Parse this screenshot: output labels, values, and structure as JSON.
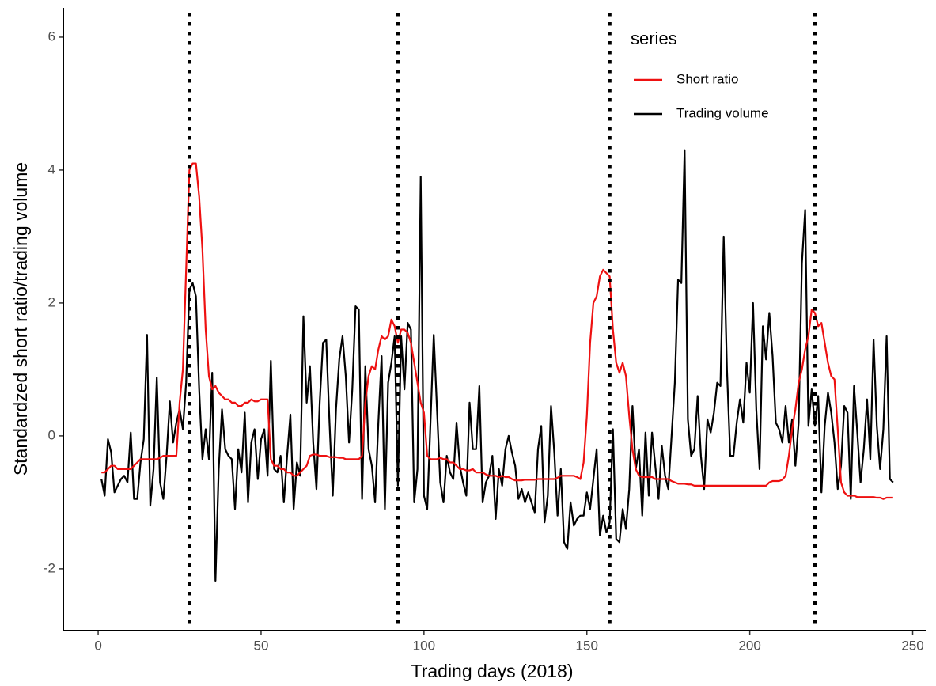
{
  "chart_data": {
    "type": "line",
    "xlabel": "Trading days (2018)",
    "ylabel": "Standardzed short ratio/trading volume",
    "legend_title": "series",
    "legend": "top-right",
    "xlim": [
      -10.7,
      254
    ],
    "ylim": [
      -2.93,
      6.44
    ],
    "xticks": [
      0,
      50,
      100,
      150,
      200,
      250
    ],
    "yticks": [
      -2,
      0,
      2,
      4,
      6
    ],
    "vlines": [
      28,
      92,
      157,
      220
    ],
    "x": [
      1,
      2,
      3,
      4,
      5,
      6,
      7,
      8,
      9,
      10,
      11,
      12,
      13,
      14,
      15,
      16,
      17,
      18,
      19,
      20,
      21,
      22,
      23,
      24,
      25,
      26,
      27,
      28,
      29,
      30,
      31,
      32,
      33,
      34,
      35,
      36,
      37,
      38,
      39,
      40,
      41,
      42,
      43,
      44,
      45,
      46,
      47,
      48,
      49,
      50,
      51,
      52,
      53,
      54,
      55,
      56,
      57,
      58,
      59,
      60,
      61,
      62,
      63,
      64,
      65,
      66,
      67,
      68,
      69,
      70,
      71,
      72,
      73,
      74,
      75,
      76,
      77,
      78,
      79,
      80,
      81,
      82,
      83,
      84,
      85,
      86,
      87,
      88,
      89,
      90,
      91,
      92,
      93,
      94,
      95,
      96,
      97,
      98,
      99,
      100,
      101,
      102,
      103,
      104,
      105,
      106,
      107,
      108,
      109,
      110,
      111,
      112,
      113,
      114,
      115,
      116,
      117,
      118,
      119,
      120,
      121,
      122,
      123,
      124,
      125,
      126,
      127,
      128,
      129,
      130,
      131,
      132,
      133,
      134,
      135,
      136,
      137,
      138,
      139,
      140,
      141,
      142,
      143,
      144,
      145,
      146,
      147,
      148,
      149,
      150,
      151,
      152,
      153,
      154,
      155,
      156,
      157,
      158,
      159,
      160,
      161,
      162,
      163,
      164,
      165,
      166,
      167,
      168,
      169,
      170,
      171,
      172,
      173,
      174,
      175,
      176,
      177,
      178,
      179,
      180,
      181,
      182,
      183,
      184,
      185,
      186,
      187,
      188,
      189,
      190,
      191,
      192,
      193,
      194,
      195,
      196,
      197,
      198,
      199,
      200,
      201,
      202,
      203,
      204,
      205,
      206,
      207,
      208,
      209,
      210,
      211,
      212,
      213,
      214,
      215,
      216,
      217,
      218,
      219,
      220,
      221,
      222,
      223,
      224,
      225,
      226,
      227,
      228,
      229,
      230,
      231,
      232,
      233,
      234,
      235,
      236,
      237,
      238,
      239,
      240,
      241,
      242,
      243,
      244
    ],
    "series": [
      {
        "name": "Short ratio",
        "color": "#ee1111",
        "values": [
          -0.55,
          -0.55,
          -0.5,
          -0.45,
          -0.45,
          -0.5,
          -0.5,
          -0.5,
          -0.5,
          -0.5,
          -0.45,
          -0.4,
          -0.35,
          -0.35,
          -0.35,
          -0.35,
          -0.35,
          -0.35,
          -0.33,
          -0.3,
          -0.3,
          -0.3,
          -0.3,
          -0.3,
          0.5,
          1.0,
          2.5,
          4.0,
          4.1,
          4.1,
          3.6,
          2.8,
          1.6,
          0.9,
          0.7,
          0.75,
          0.65,
          0.6,
          0.55,
          0.55,
          0.5,
          0.5,
          0.45,
          0.45,
          0.5,
          0.5,
          0.55,
          0.52,
          0.52,
          0.55,
          0.55,
          0.55,
          -0.35,
          -0.45,
          -0.45,
          -0.5,
          -0.5,
          -0.55,
          -0.55,
          -0.6,
          -0.6,
          -0.55,
          -0.5,
          -0.45,
          -0.3,
          -0.28,
          -0.28,
          -0.3,
          -0.3,
          -0.3,
          -0.32,
          -0.32,
          -0.32,
          -0.33,
          -0.33,
          -0.35,
          -0.35,
          -0.35,
          -0.35,
          -0.35,
          -0.3,
          0.5,
          0.9,
          1.05,
          1.0,
          1.3,
          1.5,
          1.45,
          1.5,
          1.75,
          1.65,
          1.4,
          1.6,
          1.6,
          1.55,
          1.4,
          1.1,
          0.8,
          0.5,
          0.35,
          -0.3,
          -0.35,
          -0.35,
          -0.35,
          -0.33,
          -0.35,
          -0.35,
          -0.4,
          -0.4,
          -0.45,
          -0.5,
          -0.5,
          -0.52,
          -0.52,
          -0.5,
          -0.55,
          -0.55,
          -0.55,
          -0.58,
          -0.6,
          -0.6,
          -0.6,
          -0.62,
          -0.6,
          -0.62,
          -0.62,
          -0.65,
          -0.67,
          -0.67,
          -0.67,
          -0.66,
          -0.66,
          -0.66,
          -0.66,
          -0.65,
          -0.65,
          -0.65,
          -0.65,
          -0.65,
          -0.65,
          -0.63,
          -0.6,
          -0.6,
          -0.6,
          -0.6,
          -0.6,
          -0.62,
          -0.65,
          -0.4,
          0.3,
          1.4,
          2.0,
          2.1,
          2.4,
          2.5,
          2.45,
          2.4,
          1.6,
          1.1,
          0.95,
          1.1,
          0.9,
          0.3,
          -0.2,
          -0.5,
          -0.6,
          -0.62,
          -0.62,
          -0.62,
          -0.62,
          -0.65,
          -0.65,
          -0.65,
          -0.65,
          -0.65,
          -0.68,
          -0.7,
          -0.72,
          -0.72,
          -0.72,
          -0.73,
          -0.73,
          -0.75,
          -0.75,
          -0.75,
          -0.75,
          -0.75,
          -0.75,
          -0.75,
          -0.75,
          -0.75,
          -0.75,
          -0.75,
          -0.75,
          -0.75,
          -0.75,
          -0.75,
          -0.75,
          -0.75,
          -0.75,
          -0.75,
          -0.75,
          -0.75,
          -0.75,
          -0.75,
          -0.7,
          -0.68,
          -0.68,
          -0.68,
          -0.66,
          -0.6,
          -0.3,
          0.1,
          0.4,
          0.8,
          1.0,
          1.3,
          1.5,
          1.9,
          1.85,
          1.65,
          1.7,
          1.4,
          1.1,
          0.9,
          0.85,
          0.1,
          -0.7,
          -0.85,
          -0.9,
          -0.9,
          -0.9,
          -0.92,
          -0.92,
          -0.92,
          -0.92,
          -0.92,
          -0.92,
          -0.93,
          -0.93,
          -0.95,
          -0.93,
          -0.93,
          -0.93
        ]
      },
      {
        "name": "Trading volume",
        "color": "#000000",
        "values": [
          -0.65,
          -0.9,
          -0.05,
          -0.25,
          -0.85,
          -0.75,
          -0.65,
          -0.6,
          -0.7,
          0.05,
          -0.95,
          -0.95,
          -0.4,
          -0.05,
          1.52,
          -1.05,
          -0.5,
          0.88,
          -0.7,
          -0.95,
          -0.3,
          0.52,
          -0.1,
          0.2,
          0.4,
          0.1,
          0.8,
          2.2,
          2.3,
          2.1,
          0.7,
          -0.35,
          0.1,
          -0.35,
          0.95,
          -2.18,
          -0.5,
          0.4,
          -0.2,
          -0.3,
          -0.35,
          -1.1,
          -0.2,
          -0.55,
          0.35,
          -1.0,
          -0.1,
          0.1,
          -0.65,
          -0.05,
          0.1,
          -0.6,
          1.13,
          -0.5,
          -0.55,
          -0.3,
          -1.0,
          -0.3,
          0.32,
          -1.1,
          -0.4,
          -0.6,
          1.8,
          0.5,
          1.05,
          -0.1,
          -0.8,
          0.5,
          1.4,
          1.45,
          0.2,
          -0.9,
          0.4,
          1.15,
          1.5,
          0.9,
          -0.1,
          0.7,
          1.95,
          1.9,
          -0.95,
          1.05,
          -0.2,
          -0.45,
          -1.0,
          0.2,
          1.2,
          -1.1,
          0.8,
          1.1,
          1.5,
          -0.75,
          1.5,
          0.7,
          1.7,
          1.6,
          -1.0,
          -0.5,
          3.9,
          -0.9,
          -1.1,
          0.2,
          1.52,
          0.4,
          -0.7,
          -1.0,
          -0.3,
          -0.55,
          -0.65,
          0.2,
          -0.45,
          -0.7,
          -0.9,
          0.5,
          -0.2,
          -0.2,
          0.75,
          -1.0,
          -0.7,
          -0.6,
          -0.3,
          -1.25,
          -0.5,
          -0.75,
          -0.2,
          0.0,
          -0.25,
          -0.45,
          -0.95,
          -0.8,
          -1.0,
          -0.85,
          -1.0,
          -1.15,
          -0.2,
          0.15,
          -1.3,
          -0.9,
          0.45,
          -0.25,
          -1.2,
          -0.5,
          -1.6,
          -1.7,
          -1.0,
          -1.35,
          -1.25,
          -1.2,
          -1.2,
          -0.85,
          -1.1,
          -0.65,
          -0.2,
          -1.5,
          -1.2,
          -1.45,
          -1.3,
          0.1,
          -1.55,
          -1.6,
          -1.1,
          -1.4,
          -0.8,
          0.45,
          -0.5,
          -0.2,
          -1.2,
          0.05,
          -0.9,
          0.05,
          -0.45,
          -0.95,
          -0.15,
          -0.6,
          -0.8,
          0.0,
          0.8,
          2.35,
          2.3,
          4.3,
          0.25,
          -0.3,
          -0.2,
          0.6,
          -0.3,
          -0.8,
          0.25,
          0.05,
          0.35,
          0.8,
          0.75,
          3.0,
          1.0,
          -0.3,
          -0.3,
          0.2,
          0.55,
          0.2,
          1.1,
          0.65,
          2.0,
          0.4,
          -0.5,
          1.65,
          1.15,
          1.85,
          1.2,
          0.2,
          0.1,
          -0.1,
          0.45,
          -0.1,
          0.25,
          -0.45,
          0.2,
          2.6,
          3.4,
          0.15,
          0.7,
          0.15,
          0.6,
          -0.85,
          0.15,
          0.65,
          0.35,
          -0.1,
          -0.8,
          -0.45,
          0.45,
          0.35,
          -0.95,
          0.75,
          0.05,
          -0.7,
          -0.2,
          0.55,
          -0.35,
          1.45,
          0.15,
          -0.5,
          0.1,
          1.5,
          -0.65,
          -0.7
        ]
      }
    ]
  }
}
